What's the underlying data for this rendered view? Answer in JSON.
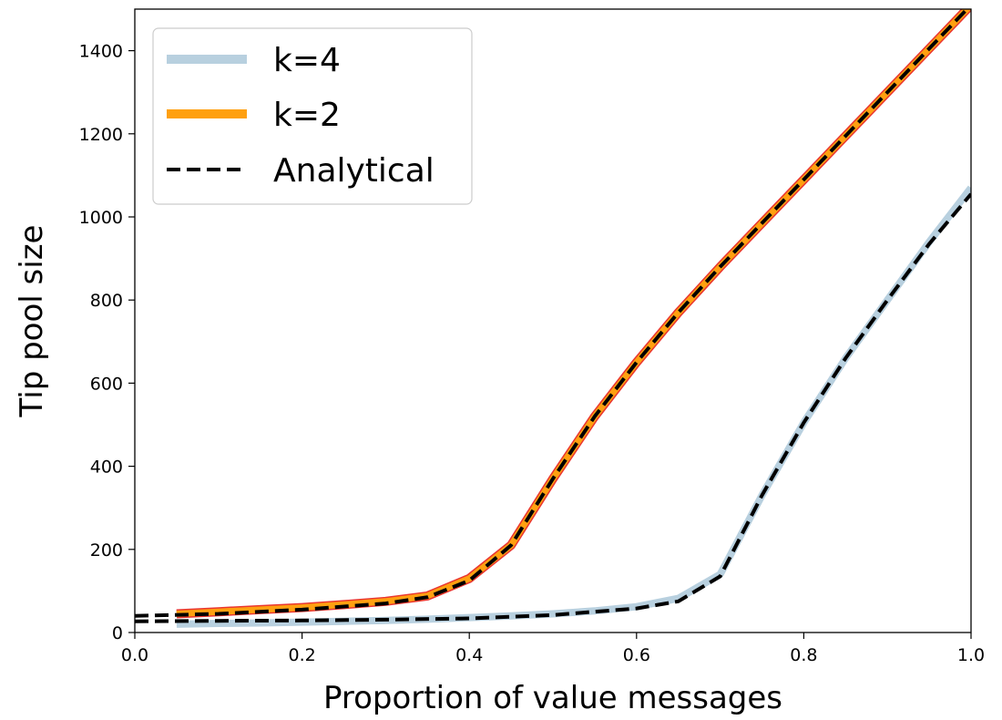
{
  "chart_data": {
    "type": "line",
    "title": "",
    "xlabel": "Proportion of value messages",
    "ylabel": "Tip pool size",
    "xlim": [
      0.0,
      1.0
    ],
    "ylim": [
      0,
      1500
    ],
    "xticks": [
      0.0,
      0.2,
      0.4,
      0.6,
      0.8,
      1.0
    ],
    "xtick_labels": [
      "0.0",
      "0.2",
      "0.4",
      "0.6",
      "0.8",
      "1.0"
    ],
    "yticks": [
      0,
      200,
      400,
      600,
      800,
      1000,
      1200,
      1400
    ],
    "ytick_labels": [
      "0",
      "200",
      "400",
      "600",
      "800",
      "1000",
      "1200",
      "1400"
    ],
    "grid": false,
    "legend_position": "top-left",
    "series": [
      {
        "name": "k=4",
        "color": "#b8d0df",
        "style": "solid-thick",
        "x": [
          0.05,
          0.1,
          0.15,
          0.2,
          0.25,
          0.3,
          0.35,
          0.4,
          0.45,
          0.5,
          0.55,
          0.6,
          0.65,
          0.7,
          0.75,
          0.8,
          0.85,
          0.9,
          0.95,
          1.0
        ],
        "y": [
          20,
          22,
          23,
          25,
          27,
          29,
          32,
          36,
          40,
          45,
          52,
          62,
          82,
          140,
          330,
          505,
          660,
          800,
          940,
          1070
        ]
      },
      {
        "name": "k=2",
        "color": "#ffa010",
        "style": "solid-thick",
        "x": [
          0.05,
          0.1,
          0.15,
          0.2,
          0.25,
          0.3,
          0.35,
          0.4,
          0.45,
          0.5,
          0.55,
          0.6,
          0.65,
          0.7,
          0.75,
          0.8,
          0.85,
          0.9,
          0.95,
          1.0
        ],
        "y": [
          45,
          50,
          55,
          60,
          67,
          75,
          88,
          130,
          210,
          370,
          520,
          650,
          770,
          880,
          985,
          1090,
          1195,
          1300,
          1405,
          1510
        ]
      },
      {
        "name": "Analytical",
        "color": "#000000",
        "style": "dashed",
        "x": [
          0.0,
          0.1,
          0.2,
          0.3,
          0.35,
          0.4,
          0.45,
          0.5,
          0.55,
          0.6,
          0.65,
          0.7,
          0.75,
          0.8,
          0.85,
          0.9,
          0.95,
          1.0
        ],
        "y": [
          40,
          45,
          55,
          70,
          85,
          125,
          210,
          370,
          520,
          650,
          770,
          880,
          985,
          1090,
          1195,
          1300,
          1405,
          1510
        ],
        "x2": [
          0.0,
          0.1,
          0.2,
          0.3,
          0.4,
          0.5,
          0.55,
          0.6,
          0.65,
          0.7,
          0.75,
          0.8,
          0.85,
          0.9,
          0.95,
          1.0
        ],
        "y2": [
          27,
          28,
          29,
          31,
          34,
          42,
          50,
          58,
          75,
          135,
          330,
          505,
          660,
          800,
          935,
          1055
        ]
      }
    ]
  }
}
